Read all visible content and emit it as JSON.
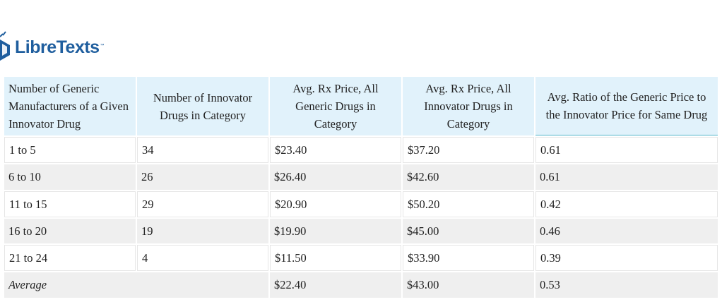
{
  "logo": {
    "name": "LibreTexts",
    "tm": "™"
  },
  "table": {
    "headers": [
      "Number of Generic Manufacturers of a Given Innovator Drug",
      "Number of Innovator Drugs in Category",
      "Avg. Rx Price, All Generic Drugs in Category",
      "Avg. Rx Price, All Innovator Drugs in Category",
      "Avg. Ratio of the Generic Price to the Innovator Price for Same Drug"
    ],
    "rows": [
      [
        "1 to 5",
        "34",
        "$23.40",
        "$37.20",
        "0.61"
      ],
      [
        "6 to 10",
        "26",
        "$26.40",
        "$42.60",
        "0.61"
      ],
      [
        "11 to 15",
        "29",
        "$20.90",
        "$50.20",
        "0.42"
      ],
      [
        "16 to 20",
        "19",
        "$19.90",
        "$45.00",
        "0.46"
      ],
      [
        "21 to 24",
        "4",
        "$11.50",
        "$33.90",
        "0.39"
      ]
    ],
    "average": {
      "label": "Average",
      "generic_price": "$22.40",
      "innovator_price": "$43.00",
      "ratio": "0.53"
    }
  },
  "colors": {
    "logo_blue": "#1f5e9e",
    "header_bg": "#e1f2fb",
    "stripe_bg": "#efefef",
    "header_accent": "#4fb3c9"
  }
}
